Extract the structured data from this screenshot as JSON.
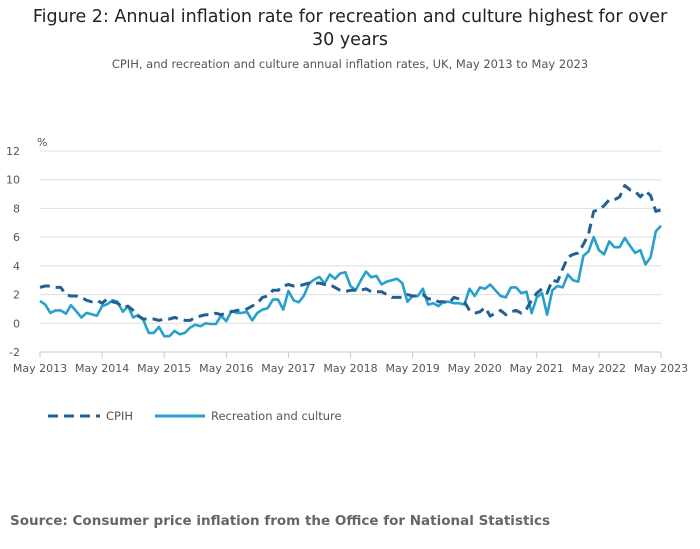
{
  "title": "Figure 2: Annual inflation rate for recreation and culture highest for over 30 years",
  "subtitle": "CPIH, and recreation and culture annual inflation rates, UK, May 2013 to May 2023",
  "source": "Source: Consumer price inflation from the Office for National Statistics",
  "chart_data": {
    "type": "line",
    "title": "Figure 2: Annual inflation rate for recreation and culture highest for over 30 years",
    "ylabel": "%",
    "xlabel": "",
    "ylim": [
      -2,
      12
    ],
    "yticks": [
      -2,
      0,
      2,
      4,
      6,
      8,
      10,
      12
    ],
    "xticks": [
      "May 2013",
      "May 2014",
      "May 2015",
      "May 2016",
      "May 2017",
      "May 2018",
      "May 2019",
      "May 2020",
      "May 2021",
      "May 2022",
      "May 2023"
    ],
    "x_start": "May 2013",
    "x_end": "May 2023",
    "frequency": "monthly",
    "grid": true,
    "legend_position": "bottom-left",
    "series": [
      {
        "name": "CPIH",
        "color": "#206095",
        "style": "dashed",
        "values": [
          2.5,
          2.6,
          2.6,
          2.5,
          2.5,
          2.0,
          1.9,
          1.9,
          1.8,
          1.6,
          1.5,
          1.6,
          1.4,
          1.7,
          1.5,
          1.4,
          1.1,
          1.2,
          0.9,
          0.5,
          0.3,
          0.3,
          0.3,
          0.2,
          0.3,
          0.3,
          0.4,
          0.3,
          0.2,
          0.2,
          0.4,
          0.5,
          0.6,
          0.6,
          0.7,
          0.6,
          0.7,
          0.8,
          0.9,
          0.9,
          1.0,
          1.2,
          1.4,
          1.8,
          1.9,
          2.3,
          2.3,
          2.6,
          2.7,
          2.6,
          2.6,
          2.7,
          2.8,
          2.8,
          2.8,
          2.7,
          2.7,
          2.5,
          2.3,
          2.2,
          2.3,
          2.3,
          2.3,
          2.4,
          2.2,
          2.2,
          2.2,
          2.0,
          1.8,
          1.8,
          1.8,
          2.0,
          1.9,
          1.9,
          2.0,
          1.7,
          1.7,
          1.5,
          1.5,
          1.4,
          1.8,
          1.7,
          1.5,
          0.9,
          0.7,
          0.8,
          1.1,
          0.5,
          0.7,
          0.9,
          0.6,
          0.8,
          0.9,
          0.7,
          1.0,
          1.6,
          2.1,
          2.4,
          2.1,
          3.0,
          2.9,
          3.8,
          4.6,
          4.8,
          4.9,
          5.5,
          6.2,
          7.8,
          7.9,
          8.2,
          8.6,
          8.6,
          8.8,
          9.6,
          9.3,
          9.2,
          8.8,
          9.2,
          8.9,
          7.8,
          7.9
        ]
      },
      {
        "name": "Recreation and culture",
        "color": "#27a0cc",
        "style": "solid",
        "values": [
          1.56,
          1.3,
          0.72,
          0.9,
          0.9,
          0.67,
          1.26,
          0.84,
          0.4,
          0.72,
          0.63,
          0.53,
          1.2,
          1.33,
          1.6,
          1.5,
          0.8,
          1.2,
          0.4,
          0.58,
          0.2,
          -0.67,
          -0.67,
          -0.25,
          -0.9,
          -0.9,
          -0.53,
          -0.77,
          -0.67,
          -0.3,
          -0.1,
          -0.2,
          0,
          -0.05,
          -0.05,
          0.53,
          0.15,
          0.86,
          0.72,
          0.72,
          0.8,
          0.2,
          0.72,
          0.95,
          1.05,
          1.65,
          1.65,
          0.95,
          2.25,
          1.6,
          1.46,
          1.93,
          2.77,
          3.05,
          3.23,
          2.77,
          3.4,
          3.1,
          3.47,
          3.56,
          2.6,
          2.3,
          3.0,
          3.6,
          3.2,
          3.3,
          2.7,
          2.9,
          3.0,
          3.1,
          2.8,
          1.5,
          1.9,
          1.9,
          2.4,
          1.3,
          1.4,
          1.2,
          1.5,
          1.5,
          1.4,
          1.4,
          1.3,
          2.4,
          1.9,
          2.5,
          2.4,
          2.7,
          2.3,
          1.9,
          1.8,
          2.5,
          2.5,
          2.1,
          2.2,
          0.7,
          1.8,
          2.1,
          0.6,
          2.3,
          2.6,
          2.5,
          3.4,
          3.0,
          2.9,
          4.7,
          5.0,
          6.0,
          5.1,
          4.8,
          5.7,
          5.3,
          5.3,
          5.95,
          5.4,
          4.9,
          5.1,
          4.1,
          4.6,
          6.4,
          6.8
        ]
      }
    ]
  }
}
